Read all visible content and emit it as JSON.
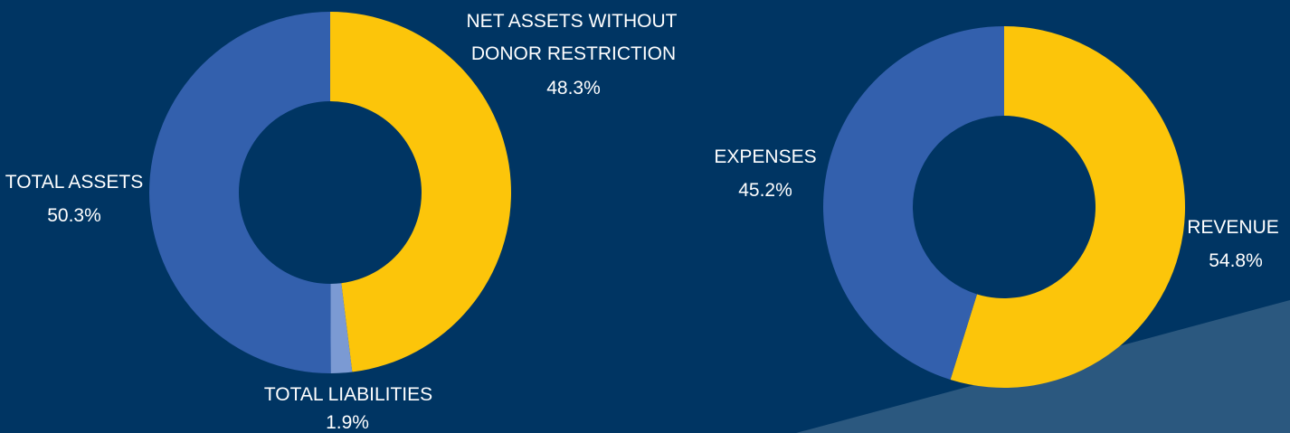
{
  "colors": {
    "background": "#003563",
    "accent_band": "#2b587f",
    "yellow": "#fcc50a",
    "blue": "#3360ad",
    "light_blue": "#7b9ad3",
    "text": "#ffffff"
  },
  "chart_data": [
    {
      "type": "pie",
      "donut": true,
      "slices": [
        {
          "label": "NET ASSETS WITHOUT DONOR RESTRICTION",
          "label_lines": [
            "NET ASSETS WITHOUT",
            "DONOR RESTRICTION"
          ],
          "value": 48.3,
          "value_text": "48.3%",
          "color": "#fcc50a"
        },
        {
          "label": "TOTAL LIABILITIES",
          "label_lines": [
            "TOTAL LIABILITIES"
          ],
          "value": 1.9,
          "value_text": "1.9%",
          "color": "#7b9ad3"
        },
        {
          "label": "TOTAL ASSETS",
          "label_lines": [
            "TOTAL ASSETS"
          ],
          "value": 50.3,
          "value_text": "50.3%",
          "color": "#3360ad"
        }
      ]
    },
    {
      "type": "pie",
      "donut": true,
      "slices": [
        {
          "label": "REVENUE",
          "label_lines": [
            "REVENUE"
          ],
          "value": 54.8,
          "value_text": "54.8%",
          "color": "#fcc50a"
        },
        {
          "label": "EXPENSES",
          "label_lines": [
            "EXPENSES"
          ],
          "value": 45.2,
          "value_text": "45.2%",
          "color": "#3360ad"
        }
      ]
    }
  ]
}
